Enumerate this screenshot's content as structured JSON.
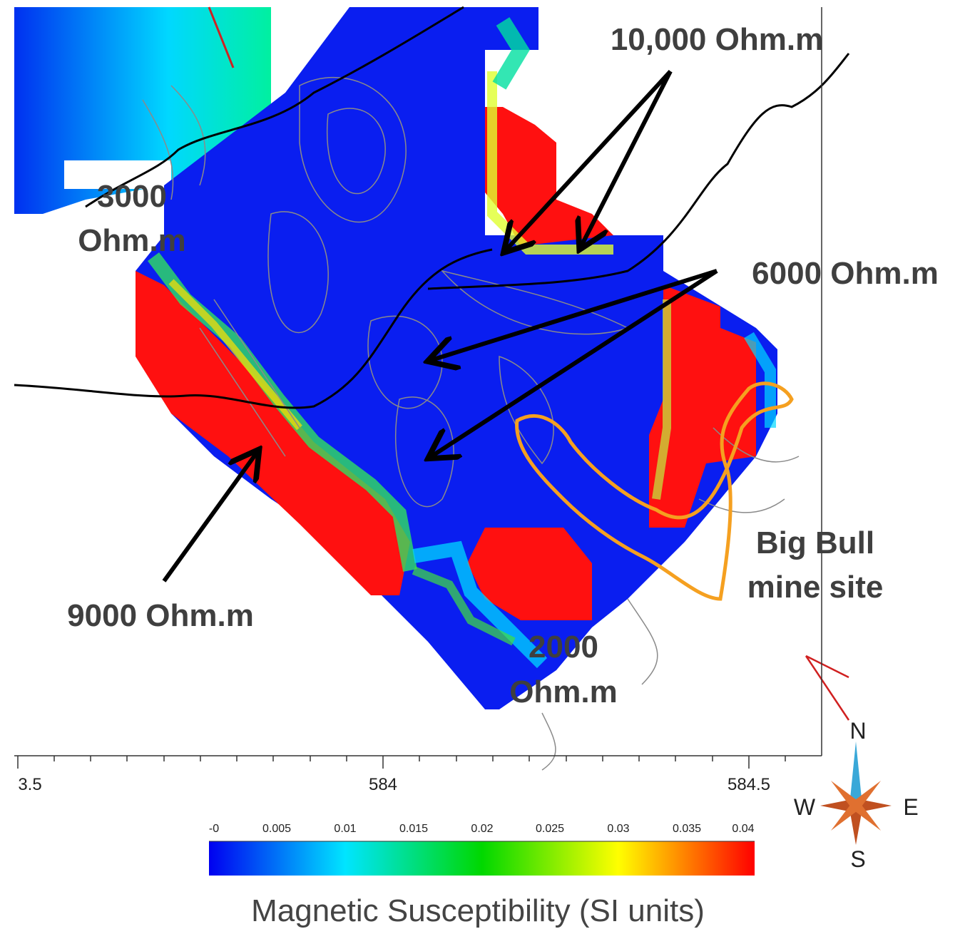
{
  "map": {
    "annotations": {
      "ohm_10000": [
        "10,000 Ohm.m"
      ],
      "ohm_3000": [
        "3000",
        "Ohm.m"
      ],
      "ohm_6000": [
        "6000 Ohm.m"
      ],
      "ohm_9000": [
        "9000 Ohm.m"
      ],
      "ohm_2000": [
        "2000",
        "Ohm.m"
      ],
      "mine": [
        "Big Bull",
        "mine site"
      ]
    },
    "x_axis": {
      "ticks": [
        "3.5",
        "584",
        "584.5"
      ]
    },
    "colorbar": {
      "ticks": [
        "-0",
        "0.005",
        "0.01",
        "0.015",
        "0.02",
        "0.025",
        "0.03",
        "0.035",
        "0.04"
      ],
      "title": "Magnetic Susceptibility (SI units)"
    },
    "compass": {
      "n": "N",
      "e": "E",
      "s": "S",
      "w": "W"
    }
  }
}
